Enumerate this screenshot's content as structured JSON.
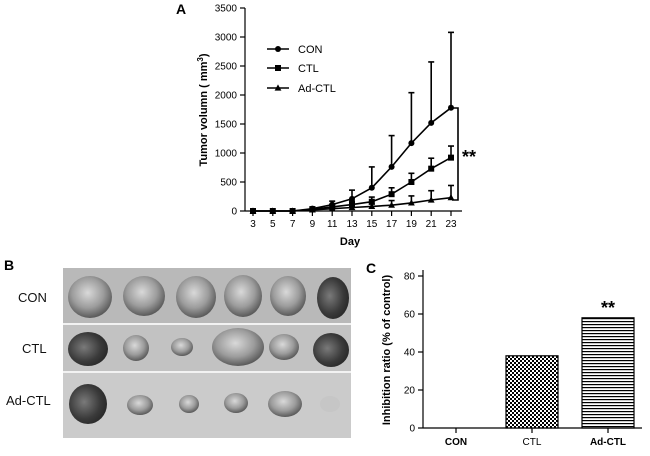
{
  "panels": {
    "a": "A",
    "b": "B",
    "c": "C"
  },
  "chart_data": [
    {
      "type": "line",
      "title": "",
      "xlabel": "Day",
      "ylabel": "Tumor volumn ( mm",
      "ylabel_superscript": "3",
      "ylabel_close": ")",
      "x": [
        3,
        5,
        7,
        9,
        11,
        13,
        15,
        17,
        19,
        21,
        23
      ],
      "ylim": [
        0,
        3500
      ],
      "yticks": [
        0,
        500,
        1000,
        1500,
        2000,
        2500,
        3000,
        3500
      ],
      "legend_position": "top-left",
      "series": [
        {
          "name": "CON",
          "marker": "circle",
          "values": [
            0,
            0,
            0,
            40,
            110,
            210,
            400,
            760,
            1170,
            1520,
            1780
          ],
          "errors": [
            0,
            0,
            0,
            30,
            60,
            150,
            360,
            540,
            870,
            1050,
            1300
          ]
        },
        {
          "name": "CTL",
          "marker": "square",
          "values": [
            0,
            0,
            0,
            30,
            70,
            110,
            160,
            290,
            500,
            730,
            920
          ],
          "errors": [
            0,
            0,
            0,
            20,
            40,
            60,
            80,
            110,
            150,
            180,
            200
          ]
        },
        {
          "name": "Ad-CTL",
          "marker": "triangle",
          "values": [
            0,
            0,
            0,
            20,
            40,
            60,
            80,
            100,
            140,
            190,
            230
          ],
          "errors": [
            0,
            0,
            0,
            10,
            20,
            30,
            40,
            80,
            120,
            160,
            210
          ]
        }
      ],
      "annotation": "**"
    },
    {
      "type": "bar",
      "title": "",
      "xlabel": "",
      "ylabel": "Inhibition ratio (% of control)",
      "categories": [
        "CON",
        "CTL",
        "Ad-CTL"
      ],
      "values": [
        0,
        38,
        58
      ],
      "ylim": [
        0,
        80
      ],
      "yticks": [
        0,
        20,
        40,
        60,
        80
      ],
      "annotation": "**"
    }
  ],
  "photo": {
    "rows": [
      "CON",
      "CTL",
      "Ad-CTL"
    ],
    "tumor_counts": [
      6,
      6,
      6
    ]
  }
}
